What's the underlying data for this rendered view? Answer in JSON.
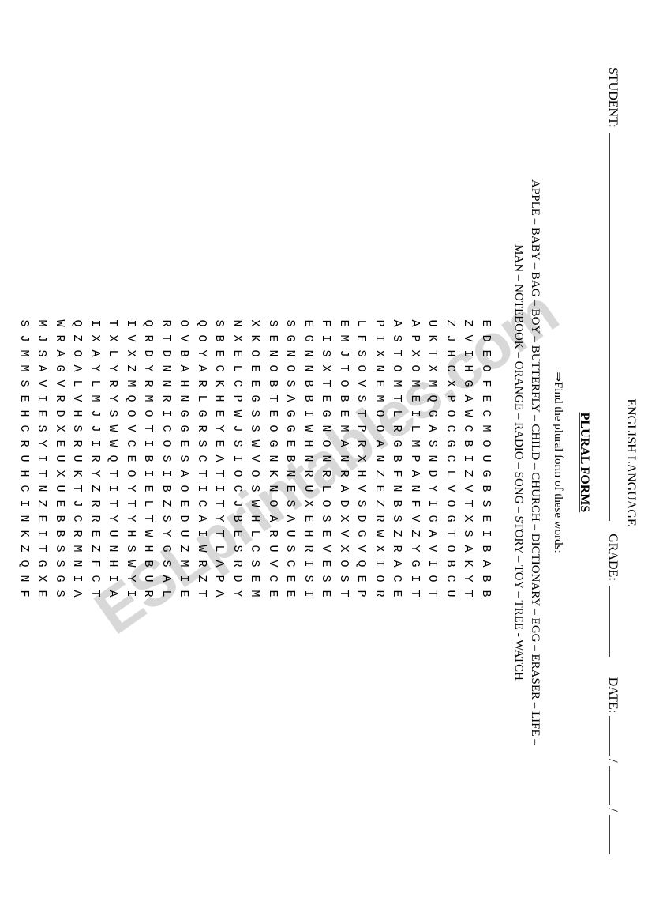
{
  "header": {
    "subject": "ENGLISH LANGUAGE",
    "student_label": "STUDENT:",
    "grade_label": "GRADE:",
    "date_label": "DATE:",
    "slash": "/"
  },
  "title": "PLURAL FORMS",
  "instruction_arrow": "⇒",
  "instruction": "Find the plural form of these words:",
  "wordlist": "APPLE – BABY – BAG – BOY – BUTTERFLY – CHILD – CHURCH – DICTIONARY – EGG – ERASER – LIFE – MAN – NOTEBOOK – ORANGE – RADIO – SONG – STORY – TOY – TREE - WATCH",
  "grid_rows": [
    "EDEOFECMOUGBSEIBABB",
    "ZVIHGAWCBIZVTXSAKYT",
    "ZJHCXPOCGCLVOGTOBCU",
    "UKTXMQGASNDYIGAVIOT",
    "APXOMEILMPANFVZYGIT",
    "ASTOMTLRGBFNBSZRACE",
    "PIXNEMOOANZEZRWXIOR",
    "LFSOVSTPRXHVSDGVQEP",
    "EMJTOBEMANRADXVXOST",
    "FISXTEGNONRLOSEVESE",
    "EGNNBBIWHNRUXEHRISI",
    "SGNOSAGGEBNESAUSCEE",
    "SENOBTEOGNKNOARUVCE",
    "XKOEEGSSWVOSWHLCSEM",
    "NXELCPWJSIOCJBESRDY",
    "SBECKHEYEATITYTLAPA",
    "QOYARLGRSCTICAIWRZT",
    "OVBAHNGGESAOEDUZMIE",
    "RTDNNRICOSIBZSYGSAL",
    "QRDYRMOTIBIELTWHBUR",
    "IVXZMQOVCEOYTYHSWYI",
    "TXLYRYSWWQTITYUNHIA",
    "IXAYLMJJIRYZRREZFCT",
    "QZOALVHSRUKTJCRMNIA",
    "WRAGVRDXEUXUEBBSSGS",
    "MJSAVIESYITNZEITGXE",
    "SJMMSEHCRUHCINKZQNF"
  ],
  "style": {
    "bg": "#ffffff",
    "text": "#000000",
    "watermark_color": "#d8d8d8",
    "watermark_text": "ESLprintables.com",
    "grid_font": "Courier New",
    "body_font": "Times New Roman",
    "grid_fontsize": 15,
    "body_fontsize": 16,
    "grid_letter_spacing": 10
  }
}
